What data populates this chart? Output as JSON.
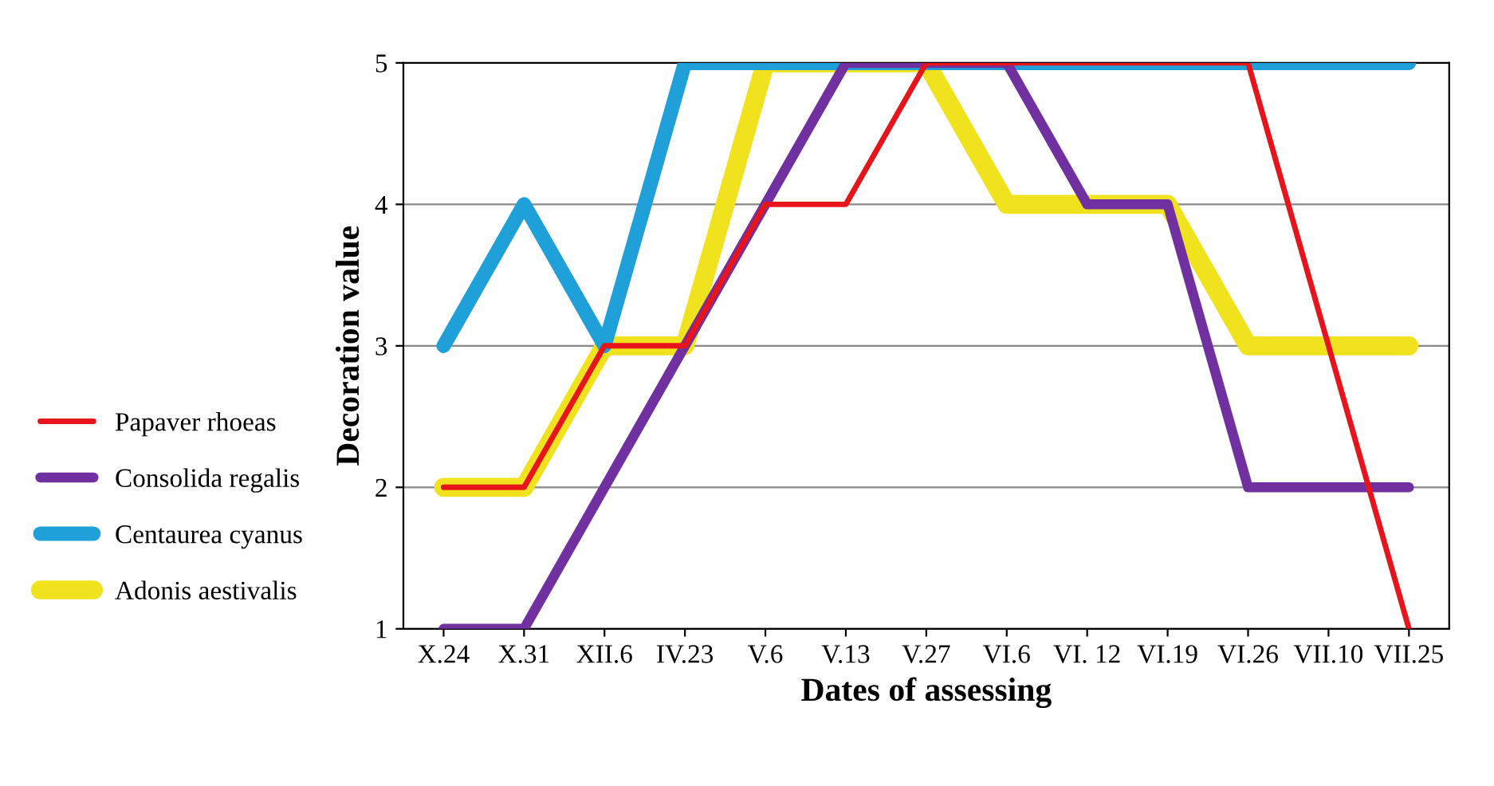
{
  "chart_data": {
    "type": "line",
    "xlabel": "Dates of assessing",
    "ylabel": "Decoration value",
    "categories": [
      "X.24",
      "X.31",
      "XII.6",
      "IV.23",
      "V.6",
      "V.13",
      "V.27",
      "VI.6",
      "VI. 12",
      "VI.19",
      "VI.26",
      "VII.10",
      "VII.25"
    ],
    "series": [
      {
        "name": "Papaver rhoeas",
        "color": "#e8141c",
        "values": [
          2,
          2,
          3,
          3,
          4,
          4,
          5,
          5,
          5,
          5,
          5,
          3,
          1
        ]
      },
      {
        "name": "Consolida regalis",
        "color": "#7030a0",
        "values": [
          1,
          1,
          2,
          3,
          4,
          5,
          5,
          5,
          4,
          4,
          2,
          2,
          2
        ]
      },
      {
        "name": "Centaurea cyanus",
        "color": "#1fa0d8",
        "values": [
          3,
          4,
          3,
          5,
          5,
          5,
          5,
          5,
          5,
          5,
          5,
          5,
          5
        ]
      },
      {
        "name": "Adonis aestivalis",
        "color": "#f0e21c",
        "values": [
          2,
          2,
          3,
          3,
          5,
          5,
          5,
          4,
          4,
          4,
          3,
          3,
          3
        ]
      }
    ],
    "ylim": [
      1,
      5
    ],
    "yticks": [
      1,
      2,
      3,
      4,
      5
    ],
    "grid": "y",
    "legend": "bottom left",
    "marker": "none",
    "line_style": "solid"
  }
}
